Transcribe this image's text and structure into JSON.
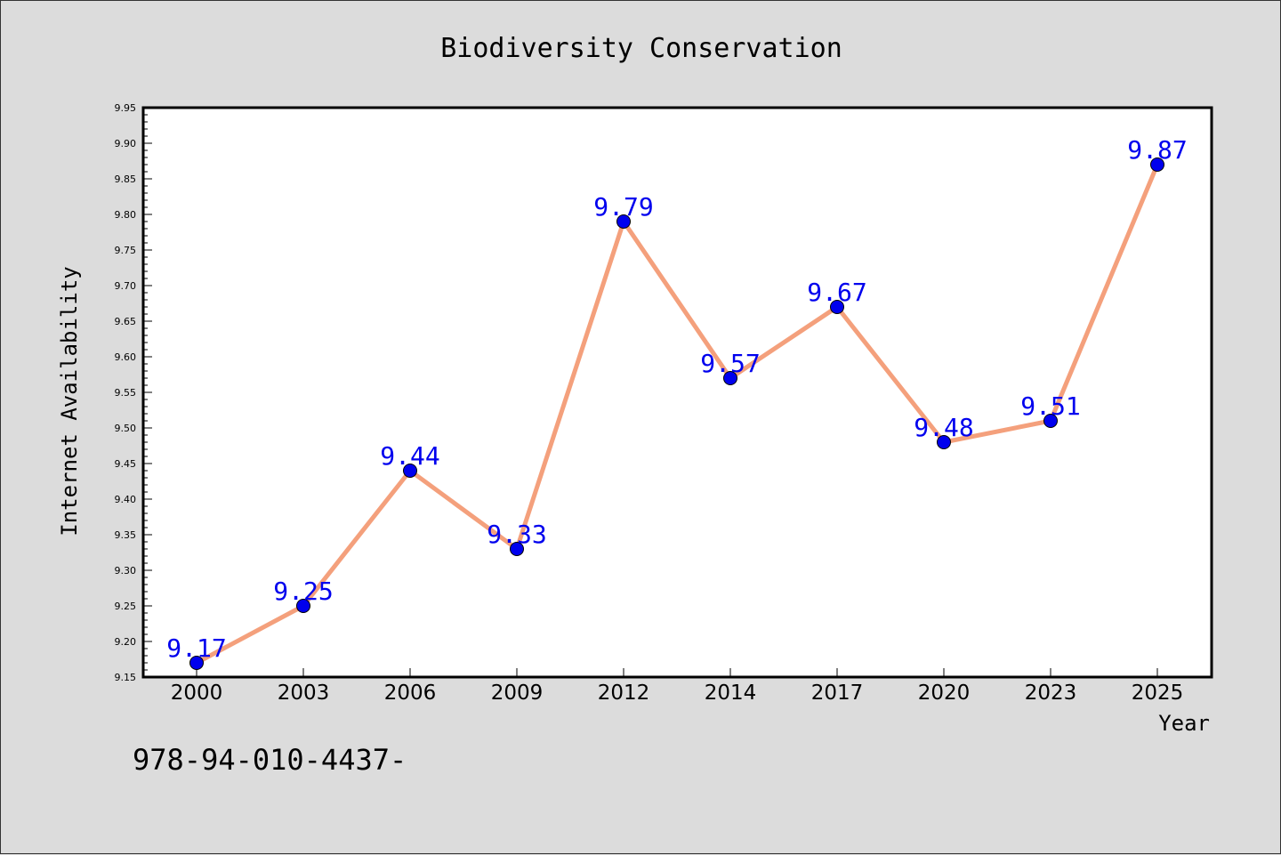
{
  "chart_data": {
    "type": "line",
    "title": "Biodiversity Conservation",
    "xlabel": "Year",
    "ylabel": "Internet Availability",
    "categories": [
      "2000",
      "2003",
      "2006",
      "2009",
      "2012",
      "2014",
      "2017",
      "2020",
      "2023",
      "2025"
    ],
    "series": [
      {
        "values": [
          9.17,
          9.25,
          9.44,
          9.33,
          9.79,
          9.57,
          9.67,
          9.48,
          9.51,
          9.87
        ],
        "data_labels": [
          "9.17",
          "9.25",
          "9.44",
          "9.33",
          "9.79",
          "9.57",
          "9.67",
          "9.48",
          "9.51",
          "9.87"
        ]
      }
    ],
    "ylim": [
      9.15,
      9.95
    ],
    "yticks": [
      "9.15",
      "9.20",
      "9.25",
      "9.30",
      "9.35",
      "9.40",
      "9.45",
      "9.50",
      "9.55",
      "9.60",
      "9.65",
      "9.70",
      "9.75",
      "9.80",
      "9.85",
      "9.90",
      "9.95"
    ],
    "grid": false,
    "legend": "none"
  },
  "footer_text": "978-94-010-4437-",
  "colors": {
    "background": "#dcdcdc",
    "plot_background": "#ffffff",
    "line": "#f4a07c",
    "marker": "#0000ee",
    "data_label": "#0000ee",
    "axis": "#000000"
  }
}
